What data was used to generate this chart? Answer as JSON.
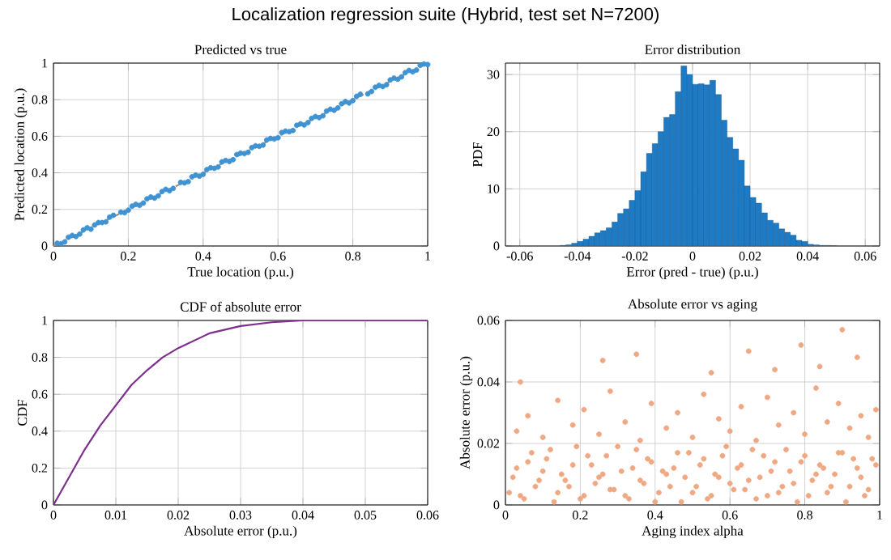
{
  "chart_data": [
    {
      "type": "scatter",
      "title": "Predicted vs true",
      "xlabel": "True location (p.u.)",
      "ylabel": "Predicted location (p.u.)",
      "annotations": [
        "Localization regression suite (Hybrid, test set N=7200)"
      ],
      "xlim": [
        0,
        1
      ],
      "ylim": [
        0,
        1
      ],
      "xticks": [
        0,
        0.2,
        0.4,
        0.6,
        0.8,
        1
      ],
      "yticks": [
        0,
        0.2,
        0.4,
        0.6,
        0.8,
        1
      ],
      "grid": true,
      "series": [
        {
          "type": "scatter",
          "marker": "circle",
          "color": "#3f93d3",
          "x": [
            0.01,
            0.03,
            0.05,
            0.07,
            0.09,
            0.11,
            0.13,
            0.15,
            0.18,
            0.2,
            0.22,
            0.24,
            0.26,
            0.28,
            0.3,
            0.32,
            0.35,
            0.37,
            0.39,
            0.41,
            0.43,
            0.45,
            0.47,
            0.49,
            0.51,
            0.53,
            0.55,
            0.57,
            0.59,
            0.61,
            0.63,
            0.65,
            0.68,
            0.7,
            0.72,
            0.74,
            0.76,
            0.78,
            0.8,
            0.82,
            0.85,
            0.87,
            0.89,
            0.91,
            0.93,
            0.95,
            0.97,
            0.99,
            0.02,
            0.04,
            0.06,
            0.08,
            0.1,
            0.12,
            0.14,
            0.16,
            0.19,
            0.21,
            0.23,
            0.25,
            0.27,
            0.29,
            0.31,
            0.34,
            0.36,
            0.38,
            0.4,
            0.42,
            0.44,
            0.46,
            0.48,
            0.5,
            0.52,
            0.54,
            0.56,
            0.58,
            0.6,
            0.62,
            0.64,
            0.66,
            0.67,
            0.69,
            0.71,
            0.73,
            0.75,
            0.77,
            0.79,
            0.81,
            0.84,
            0.86,
            0.88,
            0.9,
            0.92,
            0.94,
            0.96,
            0.98,
            1.0
          ],
          "values": [
            0.015,
            0.022,
            0.058,
            0.065,
            0.1,
            0.115,
            0.128,
            0.158,
            0.185,
            0.196,
            0.228,
            0.235,
            0.268,
            0.274,
            0.31,
            0.315,
            0.345,
            0.378,
            0.382,
            0.418,
            0.425,
            0.46,
            0.462,
            0.5,
            0.505,
            0.538,
            0.545,
            0.58,
            0.585,
            0.62,
            0.625,
            0.66,
            0.675,
            0.708,
            0.712,
            0.748,
            0.755,
            0.79,
            0.795,
            0.83,
            0.845,
            0.878,
            0.882,
            0.918,
            0.925,
            0.96,
            0.962,
            0.995,
            0.012,
            0.048,
            0.052,
            0.088,
            0.092,
            0.128,
            0.132,
            0.168,
            0.182,
            0.218,
            0.222,
            0.258,
            0.262,
            0.298,
            0.302,
            0.348,
            0.352,
            0.388,
            0.392,
            0.428,
            0.432,
            0.468,
            0.472,
            0.508,
            0.512,
            0.548,
            0.552,
            0.588,
            0.592,
            0.628,
            0.632,
            0.668,
            0.662,
            0.698,
            0.702,
            0.738,
            0.742,
            0.778,
            0.782,
            0.818,
            0.832,
            0.868,
            0.872,
            0.908,
            0.912,
            0.948,
            0.952,
            0.988,
            0.992
          ]
        },
        {
          "type": "line",
          "color": "#a0907f",
          "line_style": "dashed",
          "x": [
            0,
            1
          ],
          "values": [
            0,
            1
          ]
        }
      ]
    },
    {
      "type": "histogram",
      "title": "Error distribution",
      "xlabel": "Error (pred - true) (p.u.)",
      "ylabel": "PDF",
      "xlim": [
        -0.065,
        0.065
      ],
      "ylim": [
        0,
        32
      ],
      "xticks": [
        -0.06,
        -0.04,
        -0.02,
        0,
        0.02,
        0.04,
        0.06
      ],
      "yticks": [
        0,
        10,
        20,
        30
      ],
      "grid": true,
      "color": "#1f7ac4",
      "bins": [
        -0.046,
        -0.044,
        -0.042,
        -0.04,
        -0.038,
        -0.036,
        -0.034,
        -0.032,
        -0.03,
        -0.028,
        -0.026,
        -0.024,
        -0.022,
        -0.02,
        -0.018,
        -0.016,
        -0.014,
        -0.012,
        -0.01,
        -0.008,
        -0.006,
        -0.004,
        -0.002,
        0,
        0.002,
        0.004,
        0.006,
        0.008,
        0.01,
        0.012,
        0.014,
        0.016,
        0.018,
        0.02,
        0.022,
        0.024,
        0.026,
        0.028,
        0.03,
        0.032,
        0.034,
        0.036,
        0.038,
        0.04,
        0.042,
        0.044,
        0.046,
        0.048,
        0.05
      ],
      "values": [
        0.1,
        0.2,
        0.5,
        0.8,
        1.2,
        1.7,
        2.3,
        2.7,
        3.2,
        4.2,
        5.7,
        6.5,
        8.0,
        9.7,
        13.0,
        16.2,
        17.9,
        20.0,
        22.5,
        23.0,
        27.0,
        31.5,
        30.0,
        28.3,
        28.4,
        28.2,
        29.0,
        26.5,
        22.0,
        19.0,
        17.0,
        15.0,
        10.5,
        8.5,
        7.5,
        5.8,
        4.5,
        4.0,
        3.0,
        2.4,
        1.9,
        1.0,
        0.8,
        0.3,
        0.2,
        0.1,
        0.1,
        0.05
      ]
    },
    {
      "type": "line",
      "title": "CDF of absolute error",
      "xlabel": "Absolute error (p.u.)",
      "ylabel": "CDF",
      "xlim": [
        0,
        0.06
      ],
      "ylim": [
        0,
        1
      ],
      "xticks": [
        0,
        0.01,
        0.02,
        0.03,
        0.04,
        0.05,
        0.06
      ],
      "yticks": [
        0,
        0.2,
        0.4,
        0.6,
        0.8,
        1
      ],
      "grid": true,
      "color": "#7e2f8e",
      "line_style": "solid",
      "x": [
        0,
        0.0025,
        0.005,
        0.0075,
        0.01,
        0.0125,
        0.015,
        0.0175,
        0.02,
        0.025,
        0.03,
        0.035,
        0.04,
        0.05,
        0.06
      ],
      "values": [
        0,
        0.15,
        0.3,
        0.43,
        0.54,
        0.65,
        0.73,
        0.8,
        0.85,
        0.93,
        0.97,
        0.99,
        1.0,
        1.0,
        1.0
      ]
    },
    {
      "type": "scatter",
      "title": "Absolute error vs aging",
      "xlabel": "Aging index alpha",
      "ylabel": "Absolute error (p.u.)",
      "xlim": [
        0,
        1
      ],
      "ylim": [
        0,
        0.06
      ],
      "xticks": [
        0,
        0.2,
        0.4,
        0.6,
        0.8,
        1
      ],
      "yticks": [
        0,
        0.02,
        0.04,
        0.06
      ],
      "grid": true,
      "marker": "circle",
      "color": "#f0a883",
      "x": [
        0.01,
        0.03,
        0.05,
        0.07,
        0.09,
        0.11,
        0.13,
        0.15,
        0.17,
        0.19,
        0.21,
        0.23,
        0.25,
        0.27,
        0.29,
        0.31,
        0.33,
        0.35,
        0.37,
        0.39,
        0.41,
        0.43,
        0.45,
        0.47,
        0.49,
        0.51,
        0.53,
        0.55,
        0.57,
        0.59,
        0.61,
        0.63,
        0.65,
        0.67,
        0.69,
        0.71,
        0.73,
        0.75,
        0.77,
        0.79,
        0.81,
        0.83,
        0.85,
        0.87,
        0.89,
        0.91,
        0.93,
        0.95,
        0.97,
        0.99,
        0.02,
        0.04,
        0.06,
        0.08,
        0.1,
        0.12,
        0.14,
        0.16,
        0.18,
        0.2,
        0.22,
        0.24,
        0.26,
        0.28,
        0.3,
        0.32,
        0.34,
        0.36,
        0.38,
        0.4,
        0.42,
        0.44,
        0.46,
        0.48,
        0.5,
        0.52,
        0.54,
        0.56,
        0.58,
        0.6,
        0.62,
        0.64,
        0.66,
        0.68,
        0.7,
        0.72,
        0.74,
        0.76,
        0.78,
        0.8,
        0.82,
        0.84,
        0.86,
        0.88,
        0.9,
        0.92,
        0.94,
        0.96,
        0.98,
        0.03,
        0.06,
        0.1,
        0.14,
        0.18,
        0.21,
        0.25,
        0.28,
        0.32,
        0.36,
        0.39,
        0.43,
        0.46,
        0.5,
        0.53,
        0.57,
        0.6,
        0.63,
        0.67,
        0.7,
        0.73,
        0.77,
        0.8,
        0.83,
        0.86,
        0.89,
        0.92,
        0.95,
        0.97,
        0.99,
        0.04,
        0.26,
        0.35,
        0.55,
        0.65,
        0.79,
        0.84,
        0.9,
        0.94,
        0.72
      ],
      "values": [
        0.004,
        0.012,
        0.002,
        0.017,
        0.008,
        0.015,
        0.001,
        0.01,
        0.006,
        0.019,
        0.003,
        0.013,
        0.009,
        0.016,
        0.005,
        0.011,
        0.002,
        0.018,
        0.007,
        0.014,
        0.004,
        0.01,
        0.012,
        0.001,
        0.017,
        0.006,
        0.015,
        0.003,
        0.009,
        0.019,
        0.005,
        0.013,
        0.008,
        0.002,
        0.016,
        0.011,
        0.004,
        0.018,
        0.007,
        0.014,
        0.003,
        0.01,
        0.012,
        0.006,
        0.017,
        0.001,
        0.015,
        0.009,
        0.005,
        0.013,
        0.009,
        0.003,
        0.014,
        0.006,
        0.011,
        0.018,
        0.004,
        0.008,
        0.013,
        0.002,
        0.016,
        0.007,
        0.01,
        0.005,
        0.019,
        0.003,
        0.012,
        0.008,
        0.015,
        0.001,
        0.011,
        0.006,
        0.017,
        0.009,
        0.004,
        0.013,
        0.002,
        0.01,
        0.016,
        0.007,
        0.012,
        0.005,
        0.018,
        0.009,
        0.003,
        0.014,
        0.006,
        0.011,
        0.001,
        0.016,
        0.008,
        0.013,
        0.004,
        0.01,
        0.017,
        0.006,
        0.012,
        0.003,
        0.015,
        0.024,
        0.029,
        0.022,
        0.034,
        0.026,
        0.031,
        0.023,
        0.037,
        0.027,
        0.021,
        0.033,
        0.025,
        0.03,
        0.022,
        0.036,
        0.028,
        0.024,
        0.032,
        0.021,
        0.035,
        0.026,
        0.03,
        0.023,
        0.038,
        0.027,
        0.033,
        0.025,
        0.029,
        0.022,
        0.031,
        0.04,
        0.047,
        0.049,
        0.043,
        0.05,
        0.052,
        0.045,
        0.057,
        0.048,
        0.044
      ]
    }
  ]
}
